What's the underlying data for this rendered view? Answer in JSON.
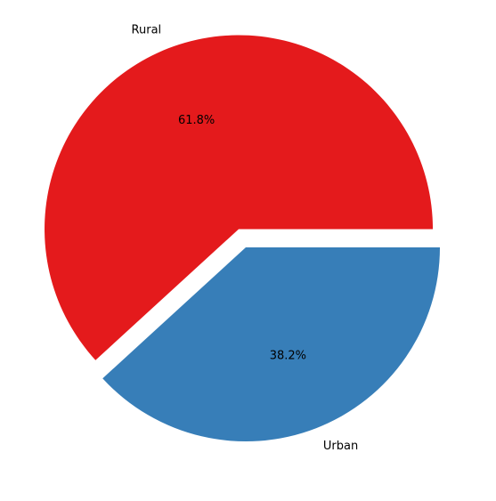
{
  "chart_data": {
    "type": "pie",
    "title": "",
    "categories": [
      "Rural",
      "Urban"
    ],
    "values": [
      61.8,
      38.2
    ],
    "percent_labels": [
      "61.8%",
      "38.2%"
    ],
    "colors": [
      "#e41a1c",
      "#377eb8"
    ],
    "exploded": [
      true,
      false
    ],
    "start_angle_deg": 0,
    "direction": "counterclockwise",
    "legend": "none"
  }
}
